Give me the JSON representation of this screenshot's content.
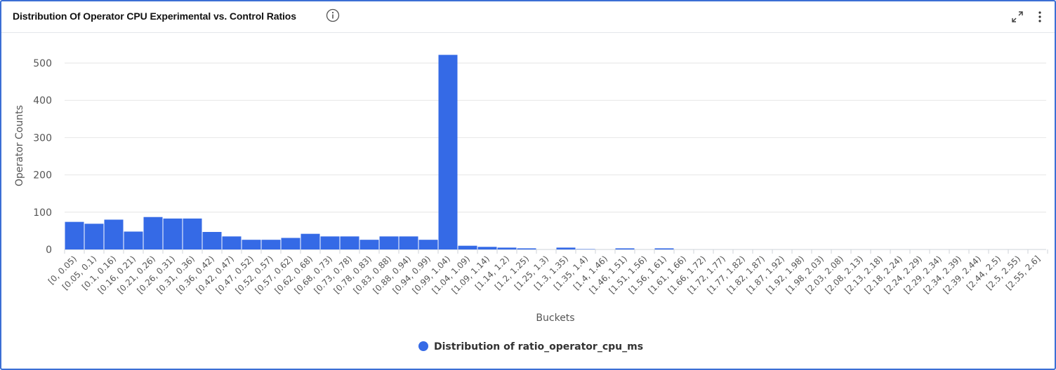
{
  "panel": {
    "title": "Distribution Of Operator CPU Experimental vs. Control Ratios",
    "info_icon": "info-circle-icon",
    "expand_icon": "expand-icon",
    "menu_icon": "kebab-menu-icon"
  },
  "colors": {
    "bar": "#356ae6",
    "frame": "#3b6fd4",
    "grid": "#e6e6e6",
    "axis_text": "#555555"
  },
  "chart_data": {
    "type": "bar",
    "xlabel": "Buckets",
    "ylabel": "Operator Counts",
    "ylim": [
      0,
      560
    ],
    "yticks": [
      0,
      100,
      200,
      300,
      400,
      500
    ],
    "grid": true,
    "legend_position": "bottom-center",
    "categories": [
      "[0, 0.05)",
      "[0.05, 0.1)",
      "[0.1, 0.16)",
      "[0.16, 0.21)",
      "[0.21, 0.26)",
      "[0.26, 0.31)",
      "[0.31, 0.36)",
      "[0.36, 0.42)",
      "[0.42, 0.47)",
      "[0.47, 0.52)",
      "[0.52, 0.57)",
      "[0.57, 0.62)",
      "[0.62, 0.68)",
      "[0.68, 0.73)",
      "[0.73, 0.78)",
      "[0.78, 0.83)",
      "[0.83, 0.88)",
      "[0.88, 0.94)",
      "[0.94, 0.99)",
      "[0.99, 1.04)",
      "[1.04, 1.09)",
      "[1.09, 1.14)",
      "[1.14, 1.2)",
      "[1.2, 1.25)",
      "[1.25, 1.3)",
      "[1.3, 1.35)",
      "[1.35, 1.4)",
      "[1.4, 1.46)",
      "[1.46, 1.51)",
      "[1.51, 1.56)",
      "[1.56, 1.61)",
      "[1.61, 1.66)",
      "[1.66, 1.72)",
      "[1.72, 1.77)",
      "[1.77, 1.82)",
      "[1.82, 1.87)",
      "[1.87, 1.92)",
      "[1.92, 1.98)",
      "[1.98, 2.03)",
      "[2.03, 2.08)",
      "[2.08, 2.13)",
      "[2.13, 2.18)",
      "[2.18, 2.24)",
      "[2.24, 2.29)",
      "[2.29, 2.34)",
      "[2.34, 2.39)",
      "[2.39, 2.44)",
      "[2.44, 2.5)",
      "[2.5, 2.55)",
      "[2.55, 2.6]"
    ],
    "series": [
      {
        "name": "Distribution of ratio_operator_cpu_ms",
        "values": [
          74,
          69,
          80,
          48,
          87,
          83,
          83,
          47,
          35,
          26,
          26,
          31,
          42,
          35,
          35,
          26,
          35,
          35,
          26,
          522,
          10,
          7,
          5,
          3,
          0,
          5,
          1,
          0,
          3,
          0,
          3,
          0,
          0,
          0,
          0,
          0,
          0,
          0,
          0,
          0,
          0,
          0,
          0,
          0,
          0,
          0,
          0,
          0,
          0,
          0
        ]
      }
    ]
  }
}
